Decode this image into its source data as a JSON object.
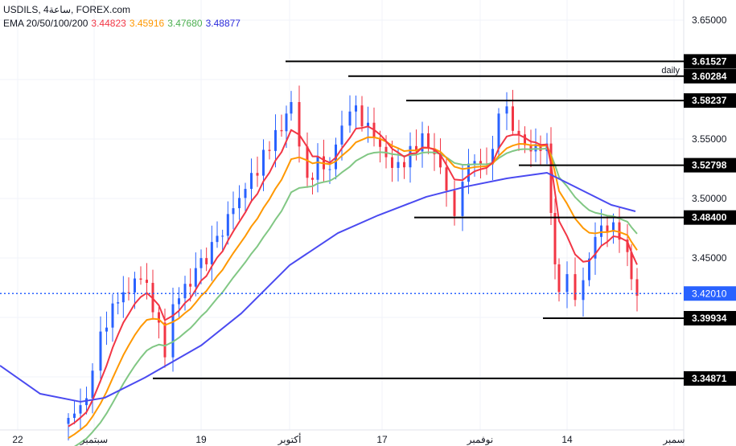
{
  "header": {
    "symbol": "USDILS, 4ساعة, FOREX.com",
    "ema_label": "EMA 20/50/100/200",
    "ema_values": [
      {
        "v": "3.44823",
        "color": "#f23645"
      },
      {
        "v": "3.45916",
        "color": "#ff9800"
      },
      {
        "v": "3.47680",
        "color": "#66bb6a"
      },
      {
        "v": "3.48877",
        "color": "#2b2bdb"
      }
    ]
  },
  "chart_data": {
    "type": "candlestick",
    "title": "USDILS, 4ساعة, FOREX.com",
    "ylim": [
      3.3,
      3.66
    ],
    "yticks": [
      "3.65000",
      "3.55000",
      "3.50000",
      "3.45000"
    ],
    "xticks": [
      {
        "t": 2.2,
        "label": "22"
      },
      {
        "t": 11.7,
        "label": "سبتمبر"
      },
      {
        "t": 25,
        "label": "19"
      },
      {
        "t": 36,
        "label": "أكتوبر"
      },
      {
        "t": 47.5,
        "label": "17"
      },
      {
        "t": 59.7,
        "label": "نوفمبر"
      },
      {
        "t": 70.5,
        "label": "14"
      },
      {
        "t": 83.8,
        "label": "سمبر"
      }
    ],
    "closes": [
      [
        8.5,
        3.3155
      ],
      [
        10,
        3.3223
      ],
      [
        11.5,
        3.3493
      ],
      [
        12.5,
        3.3831
      ],
      [
        14,
        3.4101
      ],
      [
        16,
        3.4236
      ],
      [
        17.5,
        3.4372
      ],
      [
        19,
        3.4101
      ],
      [
        20.5,
        3.3696
      ],
      [
        21.5,
        3.4101
      ],
      [
        23,
        3.4236
      ],
      [
        25,
        3.4439
      ],
      [
        27,
        3.4642
      ],
      [
        29,
        3.4912
      ],
      [
        30.5,
        3.5115
      ],
      [
        32,
        3.525
      ],
      [
        33.5,
        3.5453
      ],
      [
        35,
        3.5588
      ],
      [
        36.2,
        3.5791
      ],
      [
        37.2,
        3.5385
      ],
      [
        38.2,
        3.5115
      ],
      [
        39.5,
        3.5318
      ],
      [
        41,
        3.525
      ],
      [
        42.5,
        3.5655
      ],
      [
        43.5,
        3.5791
      ],
      [
        45,
        3.5655
      ],
      [
        46.5,
        3.552
      ],
      [
        48,
        3.5318
      ],
      [
        49.5,
        3.525
      ],
      [
        51,
        3.5385
      ],
      [
        52.5,
        3.552
      ],
      [
        54,
        3.5385
      ],
      [
        55.5,
        3.5115
      ],
      [
        56.5,
        3.4912
      ],
      [
        57.5,
        3.5182
      ],
      [
        59,
        3.5318
      ],
      [
        60.5,
        3.525
      ],
      [
        62,
        3.5655
      ],
      [
        63,
        3.5723
      ],
      [
        64.5,
        3.552
      ],
      [
        66,
        3.5419
      ],
      [
        67.2,
        3.5453
      ],
      [
        68,
        3.552
      ],
      [
        68.5,
        3.4912
      ],
      [
        69,
        3.4439
      ],
      [
        69.5,
        3.4169
      ],
      [
        70.5,
        3.4304
      ],
      [
        71.5,
        3.4101
      ],
      [
        72.5,
        3.4304
      ],
      [
        74,
        3.4709
      ],
      [
        75.5,
        3.4777
      ],
      [
        77,
        3.4709
      ],
      [
        78,
        3.4574
      ],
      [
        78.5,
        3.4304
      ],
      [
        79.2,
        3.4182
      ]
    ],
    "ema200": [
      [
        0,
        3.3595
      ],
      [
        5,
        3.3358
      ],
      [
        10,
        3.3291
      ],
      [
        13,
        3.3324
      ],
      [
        18,
        3.3493
      ],
      [
        25,
        3.3764
      ],
      [
        30,
        3.4034
      ],
      [
        36,
        3.4439
      ],
      [
        42,
        3.4709
      ],
      [
        47,
        3.4858
      ],
      [
        53,
        3.5014
      ],
      [
        58,
        3.5101
      ],
      [
        63,
        3.5169
      ],
      [
        68,
        3.5216
      ],
      [
        72,
        3.5081
      ],
      [
        76,
        3.4946
      ],
      [
        79,
        3.4892
      ]
    ],
    "levels": [
      {
        "price": "3.61527",
        "from": 35.5
      },
      {
        "price": "3.60284",
        "from": 43.3,
        "note": "daily"
      },
      {
        "price": "3.58237",
        "from": 50.5
      },
      {
        "price": "3.52798",
        "from": 64.5
      },
      {
        "price": "3.48400",
        "from": 51.5
      },
      {
        "price": "3.39934",
        "from": 67.5
      },
      {
        "price": "3.34871",
        "from": 19
      }
    ],
    "current_price": "3.42010",
    "colors": {
      "up": "#2962ff",
      "down": "#f23645",
      "ema20": "#f23645",
      "ema50": "#ff9800",
      "ema100": "#81c784",
      "ema200": "#4a4af0"
    }
  }
}
